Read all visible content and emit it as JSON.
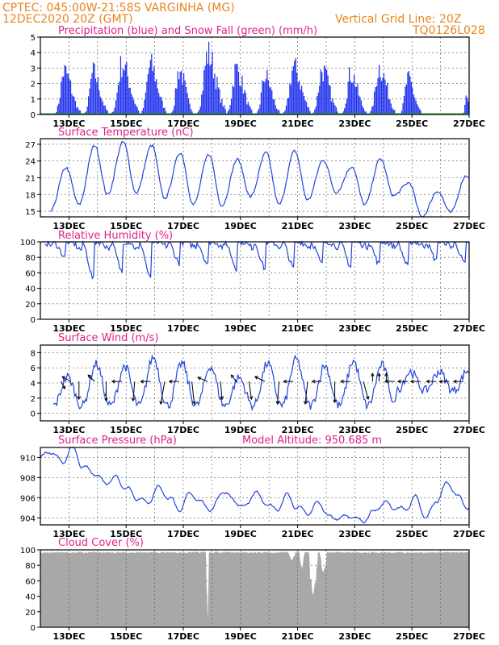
{
  "header": {
    "line1": "CPTEC:   045:00W-21:58S  VARGINHA (MG)",
    "line2": "12DEC2020 20Z (GMT)",
    "grid_note": "Vertical Grid Line: 20Z",
    "code": "TQ0126L028"
  },
  "colors": {
    "header": "#e8851e",
    "panel_title": "#e0208a",
    "series_line": "#2244dd",
    "precip_bar": "#2233ee",
    "snow": "#22aa22",
    "cloud_fill": "#a8a8a8"
  },
  "date_ticks": [
    "13DEC",
    "15DEC",
    "17DEC",
    "19DEC",
    "21DEC",
    "23DEC",
    "25DEC",
    "27DEC"
  ],
  "chart_data": [
    {
      "type": "bar",
      "title": "Precipitation (blue) and Snow Fall (green) (mm/h)",
      "ylim": [
        0,
        5
      ],
      "yticks": [
        0,
        1,
        2,
        3,
        4,
        5
      ],
      "x_start": "12DEC2020 20Z",
      "hours": 360,
      "events": [
        {
          "day": 0.84,
          "peak": 3.6,
          "width": 0.35
        },
        {
          "day": 1.85,
          "peak": 3.5,
          "width": 0.32
        },
        {
          "day": 2.86,
          "peak": 4.2,
          "width": 0.38
        },
        {
          "day": 3.85,
          "peak": 4.1,
          "width": 0.35
        },
        {
          "day": 4.86,
          "peak": 3.7,
          "width": 0.3
        },
        {
          "day": 5.86,
          "peak": 5.0,
          "width": 0.4
        },
        {
          "day": 6.85,
          "peak": 3.8,
          "width": 0.35
        },
        {
          "day": 7.86,
          "peak": 3.2,
          "width": 0.32
        },
        {
          "day": 8.86,
          "peak": 3.9,
          "width": 0.38
        },
        {
          "day": 9.86,
          "peak": 3.7,
          "width": 0.35
        },
        {
          "day": 10.86,
          "peak": 3.4,
          "width": 0.34
        },
        {
          "day": 11.86,
          "peak": 3.9,
          "width": 0.36
        },
        {
          "day": 12.86,
          "peak": 2.9,
          "width": 0.3
        },
        {
          "day": 14.9,
          "peak": 1.3,
          "width": 0.12
        }
      ],
      "snow_value": 0.0
    },
    {
      "type": "line",
      "title": "Surface Temperature (nC)",
      "ylim": [
        14,
        28
      ],
      "yticks": [
        15,
        18,
        21,
        24,
        27
      ],
      "daily_max": [
        22.8,
        26.8,
        27.4,
        26.8,
        25.5,
        25.2,
        24.3,
        25.5,
        25.8,
        24.2,
        23.0,
        24.4,
        20.1,
        18.6,
        21.4
      ],
      "daily_min": [
        15.0,
        16.2,
        18.0,
        18.3,
        17.3,
        16.2,
        16.0,
        17.6,
        16.2,
        17.0,
        18.4,
        16.2,
        17.8,
        14.0,
        14.8,
        17.5
      ]
    },
    {
      "type": "line",
      "title": "Relative Humidity (%)",
      "ylim": [
        0,
        100
      ],
      "yticks": [
        0,
        20,
        40,
        60,
        80,
        100
      ],
      "daily_min": [
        80,
        50,
        60,
        50,
        72,
        70,
        65,
        64,
        65,
        70,
        67,
        70,
        67,
        75,
        70,
        56
      ]
    },
    {
      "type": "line",
      "title": "Surface Wind (m/s)",
      "ylim": [
        -1,
        9
      ],
      "yticks": [
        0,
        2,
        4,
        6,
        8
      ],
      "daily_max": [
        4.8,
        6.5,
        6.2,
        7.4,
        6.6,
        6.2,
        4.7,
        6.6,
        7.1,
        6.3,
        6.9,
        6.4,
        5.5,
        5.5,
        5.6
      ],
      "arrows": [
        {
          "day": 0.72,
          "dx": 5,
          "dy": 9,
          "dir": "south"
        },
        {
          "day": 1.05,
          "dx": -10,
          "dy": -6,
          "dir": "northwest"
        },
        {
          "day": 1.35,
          "dx": 0,
          "dy": 22,
          "dir": "south"
        },
        {
          "day": 1.9,
          "dx": -8,
          "dy": -8,
          "dir": "northwest"
        },
        {
          "day": 2.3,
          "dx": 0,
          "dy": 24,
          "dir": "south"
        },
        {
          "day": 2.85,
          "dx": -12,
          "dy": 0,
          "dir": "west"
        },
        {
          "day": 3.3,
          "dx": -2,
          "dy": 24,
          "dir": "south"
        },
        {
          "day": 3.85,
          "dx": -12,
          "dy": 0,
          "dir": "west"
        },
        {
          "day": 4.35,
          "dx": -5,
          "dy": 28,
          "dir": "south"
        },
        {
          "day": 4.85,
          "dx": -12,
          "dy": 0,
          "dir": "west"
        },
        {
          "day": 5.3,
          "dx": 3,
          "dy": 28,
          "dir": "south"
        },
        {
          "day": 5.85,
          "dx": -12,
          "dy": -5,
          "dir": "northwest"
        },
        {
          "day": 6.3,
          "dx": 2,
          "dy": 22,
          "dir": "south"
        },
        {
          "day": 6.85,
          "dx": -6,
          "dy": -8,
          "dir": "northwest"
        },
        {
          "day": 7.3,
          "dx": 3,
          "dy": 22,
          "dir": "south"
        },
        {
          "day": 7.85,
          "dx": -12,
          "dy": -6,
          "dir": "northwest"
        },
        {
          "day": 8.35,
          "dx": -2,
          "dy": 28,
          "dir": "south"
        },
        {
          "day": 8.85,
          "dx": -12,
          "dy": 0,
          "dir": "west"
        },
        {
          "day": 9.35,
          "dx": -3,
          "dy": 28,
          "dir": "south"
        },
        {
          "day": 9.85,
          "dx": -12,
          "dy": 0,
          "dir": "west"
        },
        {
          "day": 10.3,
          "dx": 0,
          "dy": 26,
          "dir": "south"
        },
        {
          "day": 10.85,
          "dx": -12,
          "dy": 0,
          "dir": "west"
        },
        {
          "day": 11.3,
          "dx": 6,
          "dy": 22,
          "dir": "south"
        },
        {
          "day": 11.62,
          "dx": 0,
          "dy": -10,
          "dir": "north"
        },
        {
          "day": 11.85,
          "dx": 0,
          "dy": -10,
          "dir": "north"
        },
        {
          "day": 12.1,
          "dx": 0,
          "dy": -10,
          "dir": "north"
        },
        {
          "day": 12.4,
          "dx": -12,
          "dy": 0,
          "dir": "west"
        },
        {
          "day": 12.85,
          "dx": -12,
          "dy": 0,
          "dir": "west"
        },
        {
          "day": 13.3,
          "dx": -12,
          "dy": 0,
          "dir": "west"
        },
        {
          "day": 13.85,
          "dx": -12,
          "dy": 0,
          "dir": "west"
        },
        {
          "day": 14.3,
          "dx": -12,
          "dy": 0,
          "dir": "west"
        },
        {
          "day": 14.8,
          "dx": -12,
          "dy": 0,
          "dir": "west"
        }
      ]
    },
    {
      "type": "line",
      "title": "Surface Pressure (hPa)",
      "altitude_label": "Model Altitude: 950.685 m",
      "ylim": [
        903.3,
        911
      ],
      "yticks": [
        904,
        906,
        908,
        910
      ],
      "series": [
        910.0,
        910.6,
        909.5,
        911.0,
        909.0,
        908.5,
        907.5,
        908.0,
        907.0,
        906.0,
        905.5,
        907.0,
        906.0,
        904.8,
        906.5,
        905.5,
        904.8,
        906.7,
        905.8,
        905.0,
        906.5,
        905.5,
        904.8,
        906.2,
        905.0,
        904.5,
        905.5,
        904.0,
        904.0,
        904.2,
        903.6,
        904.5,
        905.5,
        905.0,
        904.8,
        906.0,
        904.0,
        905.8,
        907.5,
        906.0,
        905.0
      ]
    },
    {
      "type": "area",
      "title": "Cloud Cover (%)",
      "ylim": [
        0,
        100
      ],
      "yticks": [
        0,
        20,
        40,
        60,
        80,
        100
      ],
      "base_value": 98,
      "dips": [
        {
          "day": 5.85,
          "value": 0,
          "width": 0.04
        },
        {
          "day": 8.8,
          "value": 86,
          "width": 0.1
        },
        {
          "day": 9.15,
          "value": 75,
          "width": 0.08
        },
        {
          "day": 9.55,
          "value": 40,
          "width": 0.15
        },
        {
          "day": 9.9,
          "value": 70,
          "width": 0.12
        }
      ]
    }
  ]
}
